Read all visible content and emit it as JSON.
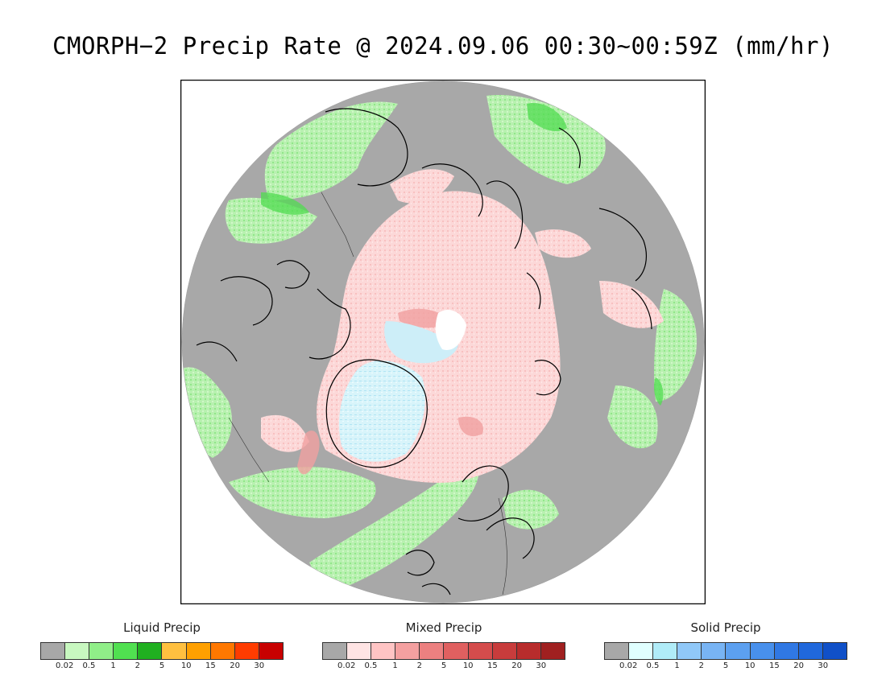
{
  "title": "CMORPH−2 Precip Rate @ 2024.09.06 00:30~00:59Z (mm/hr)",
  "map": {
    "background": "#ffffff",
    "no_precip_color": "#a8a8a8",
    "coastline_color": "#000000"
  },
  "legends": [
    {
      "title": "Liquid Precip",
      "colors": [
        "#a8a8a8",
        "#c8f8c0",
        "#90ee88",
        "#50e050",
        "#20b020",
        "#ffc040",
        "#ffa000",
        "#ff7800",
        "#ff3c00",
        "#c80000"
      ],
      "ticks": [
        "0.02",
        "0.5",
        "1",
        "2",
        "5",
        "10",
        "15",
        "20",
        "30"
      ]
    },
    {
      "title": "Mixed Precip",
      "colors": [
        "#a8a8a8",
        "#ffe4e4",
        "#ffc4c4",
        "#f4a0a0",
        "#ec8080",
        "#e06060",
        "#d44c4c",
        "#c83c3c",
        "#b82c2c",
        "#a02020"
      ],
      "ticks": [
        "0.02",
        "0.5",
        "1",
        "2",
        "5",
        "10",
        "15",
        "20",
        "30"
      ]
    },
    {
      "title": "Solid Precip",
      "colors": [
        "#a8a8a8",
        "#e0ffff",
        "#b0ecf8",
        "#90c8f8",
        "#78b4f4",
        "#5ca0f0",
        "#4890ec",
        "#3078e4",
        "#2068dc",
        "#1050c8"
      ],
      "ticks": [
        "0.02",
        "0.5",
        "1",
        "2",
        "5",
        "10",
        "15",
        "20",
        "30"
      ]
    }
  ]
}
